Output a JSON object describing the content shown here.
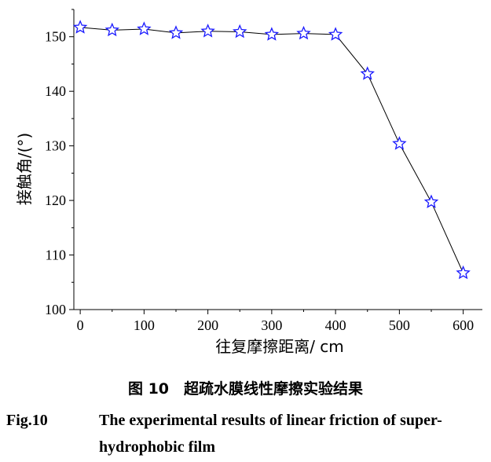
{
  "chart_data": {
    "type": "line",
    "x": [
      0,
      50,
      100,
      150,
      200,
      250,
      300,
      350,
      400,
      450,
      500,
      550,
      600
    ],
    "series": [
      {
        "values": [
          151.7,
          151.2,
          151.4,
          150.7,
          151.0,
          150.9,
          150.4,
          150.6,
          150.4,
          143.2,
          130.4,
          119.7,
          106.7
        ],
        "marker": "star",
        "color": "#1a1aff"
      }
    ],
    "xlabel": "往复摩擦距离/ cm",
    "ylabel": "接触角/(°)",
    "xlim": [
      -10,
      630
    ],
    "ylim": [
      100,
      155
    ],
    "xticks": [
      "0",
      "100",
      "200",
      "300",
      "400",
      "500",
      "600"
    ],
    "yticks": [
      "100",
      "110",
      "120",
      "130",
      "140",
      "150"
    ],
    "grid": false,
    "line_color": "#000000"
  },
  "caption": {
    "cn": "图 10　超疏水膜线性摩擦实验结果",
    "en_number": "Fig.10",
    "en_line1": "The experimental results of linear friction of super-",
    "en_line2": "hydrophobic film"
  }
}
